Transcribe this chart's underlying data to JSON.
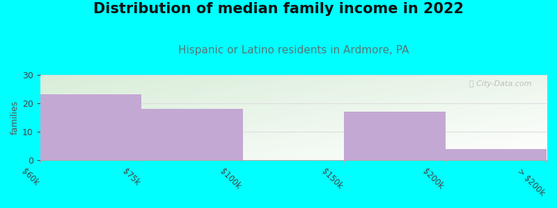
{
  "title": "Distribution of median family income in 2022",
  "subtitle": "Hispanic or Latino residents in Ardmore, PA",
  "categories": [
    "$60k",
    "$75k",
    "$100k",
    "$150k",
    "$200k",
    "> $200k"
  ],
  "bar_values": [
    23,
    18,
    0,
    17,
    4
  ],
  "bar_color": "#c4a8d4",
  "background_color": "#00ffff",
  "plot_bg_color_topleft": "#d8edd8",
  "plot_bg_color_white": "#ffffff",
  "ylabel": "families",
  "ylim": [
    0,
    30
  ],
  "yticks": [
    0,
    10,
    20,
    30
  ],
  "title_fontsize": 15,
  "subtitle_fontsize": 11,
  "subtitle_color": "#557777",
  "title_color": "#111111",
  "watermark": "ⓘ City-Data.com",
  "grid_color": "#dddddd"
}
